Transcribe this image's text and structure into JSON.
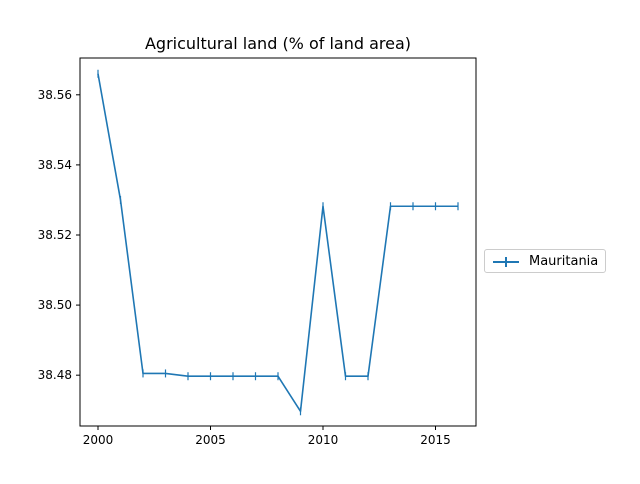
{
  "chart_data": {
    "type": "line",
    "title": "Agricultural land (% of land area)",
    "xlabel": "",
    "ylabel": "",
    "x": [
      2000,
      2001,
      2002,
      2003,
      2004,
      2005,
      2006,
      2007,
      2008,
      2009,
      2010,
      2011,
      2012,
      2013,
      2014,
      2015,
      2016
    ],
    "series": [
      {
        "name": "Mauritania",
        "color": "#1f77b4",
        "marker": "vertical-tick",
        "values": [
          38.566,
          38.53,
          38.4805,
          38.4805,
          38.4797,
          38.4797,
          38.4797,
          38.4797,
          38.4797,
          38.4697,
          38.5282,
          38.4797,
          38.4797,
          38.5282,
          38.5282,
          38.5282,
          38.5282
        ]
      }
    ],
    "xlim": [
      1999.2,
      2016.8
    ],
    "ylim": [
      38.4655,
      38.5705
    ],
    "xticks": [
      2000,
      2005,
      2010,
      2015
    ],
    "xtick_labels": [
      "2000",
      "2005",
      "2010",
      "2015"
    ],
    "yticks": [
      38.48,
      38.5,
      38.52,
      38.54,
      38.56
    ],
    "ytick_labels": [
      "38.48",
      "38.50",
      "38.52",
      "38.54",
      "38.56"
    ],
    "grid": false,
    "legend_position": "outside-right"
  },
  "legend": {
    "label": "Mauritania"
  }
}
